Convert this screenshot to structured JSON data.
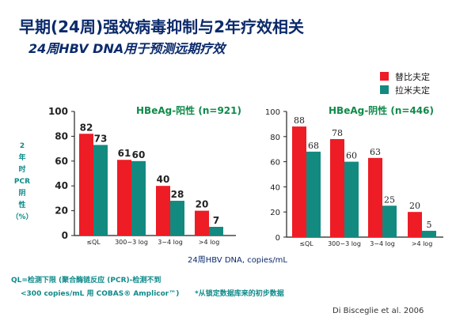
{
  "slide": {
    "title": "早期(24周)强效病毒抑制与2年疗效相关",
    "subtitle": "24周HBV DNA用于预测远期疗效",
    "ylabel_lines": [
      "2",
      "年",
      "时",
      "PCR",
      "阴",
      "性",
      "（%）"
    ],
    "xlabel": "24周HBV DNA, copies/mL",
    "note_line1": "QL=检测下限 (聚合酶链反应 (PCR)-检测不到",
    "note_line2": "<300 copies/mL 用 COBAS® Amplicor™)",
    "note_line3": "*从锁定数据库来的初步数据",
    "source": "Di Bisceglie et al. 2006"
  },
  "legend": [
    {
      "name": "替比夫定",
      "color": "#ee1c24"
    },
    {
      "name": "拉米夫定",
      "color": "#138a80"
    }
  ],
  "chart_data": [
    {
      "type": "bar",
      "title": "HBeAg-阳性 (n=921)",
      "categories": [
        "≤QL",
        "300−3 log",
        "3−4 log",
        ">4 log"
      ],
      "series": [
        {
          "name": "替比夫定",
          "values": [
            82,
            61,
            40,
            20
          ]
        },
        {
          "name": "拉米夫定",
          "values": [
            73,
            60,
            28,
            7
          ]
        }
      ],
      "ylim": [
        0,
        100
      ],
      "yticks": [
        0,
        20,
        40,
        60,
        80,
        100
      ]
    },
    {
      "type": "bar",
      "title": "HBeAg-阴性 (n=446)",
      "categories": [
        "≤QL",
        "300−3 log",
        "3−4 log",
        ">4 log"
      ],
      "series": [
        {
          "name": "替比夫定",
          "values": [
            88,
            78,
            63,
            20
          ]
        },
        {
          "name": "拉米夫定",
          "values": [
            68,
            60,
            25,
            5
          ]
        }
      ],
      "ylim": [
        0,
        100
      ],
      "yticks": [
        0,
        20,
        40,
        60,
        80,
        100
      ]
    }
  ]
}
